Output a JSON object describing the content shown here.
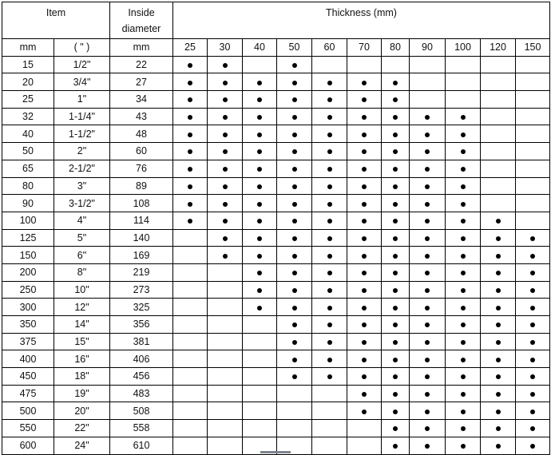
{
  "header": {
    "item": "Item",
    "inside_diameter": "Inside diameter",
    "thickness": "Thickness (mm)",
    "unit_mm": "mm",
    "unit_inch": "( \" )",
    "unit_id_mm": "mm"
  },
  "thickness_columns": [
    "25",
    "30",
    "40",
    "50",
    "60",
    "70",
    "80",
    "90",
    "100",
    "120",
    "150"
  ],
  "rows": [
    {
      "mm": "15",
      "inch": "1/2\"",
      "id": "22",
      "available": [
        "25",
        "30",
        "50"
      ]
    },
    {
      "mm": "20",
      "inch": "3/4\"",
      "id": "27",
      "available": [
        "25",
        "30",
        "40",
        "50",
        "60",
        "70",
        "80"
      ]
    },
    {
      "mm": "25",
      "inch": "1\"",
      "id": "34",
      "available": [
        "25",
        "30",
        "40",
        "50",
        "60",
        "70",
        "80"
      ]
    },
    {
      "mm": "32",
      "inch": "1-1/4\"",
      "id": "43",
      "available": [
        "25",
        "30",
        "40",
        "50",
        "60",
        "70",
        "80",
        "90",
        "100"
      ]
    },
    {
      "mm": "40",
      "inch": "1-1/2\"",
      "id": "48",
      "available": [
        "25",
        "30",
        "40",
        "50",
        "60",
        "70",
        "80",
        "90",
        "100"
      ]
    },
    {
      "mm": "50",
      "inch": "2\"",
      "id": "60",
      "available": [
        "25",
        "30",
        "40",
        "50",
        "60",
        "70",
        "80",
        "90",
        "100"
      ]
    },
    {
      "mm": "65",
      "inch": "2-1/2\"",
      "id": "76",
      "available": [
        "25",
        "30",
        "40",
        "50",
        "60",
        "70",
        "80",
        "90",
        "100"
      ]
    },
    {
      "mm": "80",
      "inch": "3\"",
      "id": "89",
      "available": [
        "25",
        "30",
        "40",
        "50",
        "60",
        "70",
        "80",
        "90",
        "100"
      ]
    },
    {
      "mm": "90",
      "inch": "3-1/2\"",
      "id": "108",
      "available": [
        "25",
        "30",
        "40",
        "50",
        "60",
        "70",
        "80",
        "90",
        "100"
      ]
    },
    {
      "mm": "100",
      "inch": "4\"",
      "id": "114",
      "available": [
        "25",
        "30",
        "40",
        "50",
        "60",
        "70",
        "80",
        "90",
        "100",
        "120"
      ]
    },
    {
      "mm": "125",
      "inch": "5\"",
      "id": "140",
      "available": [
        "30",
        "40",
        "50",
        "60",
        "70",
        "80",
        "90",
        "100",
        "120",
        "150"
      ]
    },
    {
      "mm": "150",
      "inch": "6\"",
      "id": "169",
      "available": [
        "30",
        "40",
        "50",
        "60",
        "70",
        "80",
        "90",
        "100",
        "120",
        "150"
      ]
    },
    {
      "mm": "200",
      "inch": "8\"",
      "id": "219",
      "available": [
        "40",
        "50",
        "60",
        "70",
        "80",
        "90",
        "100",
        "120",
        "150"
      ]
    },
    {
      "mm": "250",
      "inch": "10\"",
      "id": "273",
      "available": [
        "40",
        "50",
        "60",
        "70",
        "80",
        "90",
        "100",
        "120",
        "150"
      ]
    },
    {
      "mm": "300",
      "inch": "12\"",
      "id": "325",
      "available": [
        "40",
        "50",
        "60",
        "70",
        "80",
        "90",
        "100",
        "120",
        "150"
      ]
    },
    {
      "mm": "350",
      "inch": "14\"",
      "id": "356",
      "available": [
        "50",
        "60",
        "70",
        "80",
        "90",
        "100",
        "120",
        "150"
      ]
    },
    {
      "mm": "375",
      "inch": "15\"",
      "id": "381",
      "available": [
        "50",
        "60",
        "70",
        "80",
        "90",
        "100",
        "120",
        "150"
      ]
    },
    {
      "mm": "400",
      "inch": "16\"",
      "id": "406",
      "available": [
        "50",
        "60",
        "70",
        "80",
        "90",
        "100",
        "120",
        "150"
      ]
    },
    {
      "mm": "450",
      "inch": "18\"",
      "id": "456",
      "available": [
        "50",
        "60",
        "70",
        "80",
        "90",
        "100",
        "120",
        "150"
      ]
    },
    {
      "mm": "475",
      "inch": "19\"",
      "id": "483",
      "available": [
        "70",
        "80",
        "90",
        "100",
        "120",
        "150"
      ]
    },
    {
      "mm": "500",
      "inch": "20\"",
      "id": "508",
      "available": [
        "70",
        "80",
        "90",
        "100",
        "120",
        "150"
      ]
    },
    {
      "mm": "550",
      "inch": "22\"",
      "id": "558",
      "available": [
        "80",
        "90",
        "100",
        "120",
        "150"
      ]
    },
    {
      "mm": "600",
      "inch": "24\"",
      "id": "610",
      "available": [
        "80",
        "90",
        "100",
        "120",
        "150"
      ]
    }
  ]
}
